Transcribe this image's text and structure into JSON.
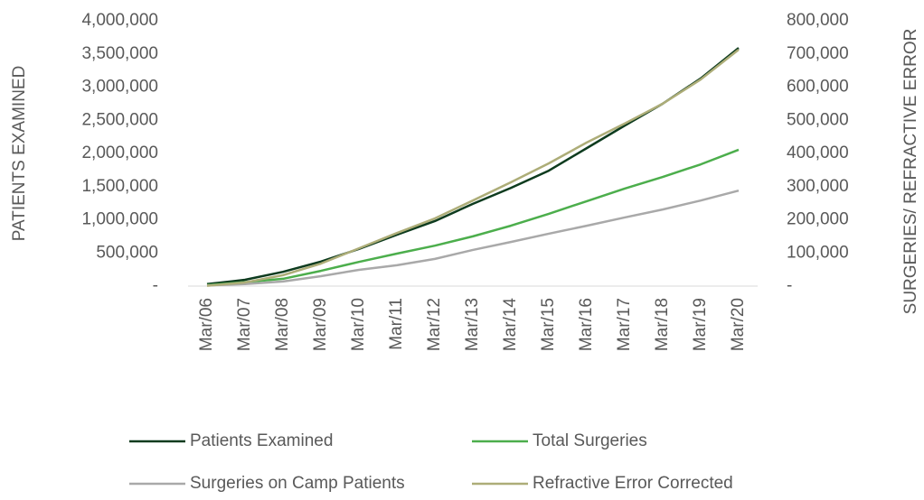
{
  "chart_data": {
    "type": "line",
    "y_label": "PATIENTS EXAMINED",
    "y2_label": "SURGERIES/ REFRACTIVE ERROR",
    "categories": [
      "Mar/06",
      "Mar/07",
      "Mar/08",
      "Mar/09",
      "Mar/10",
      "Mar/11",
      "Mar/12",
      "Mar/13",
      "Mar/14",
      "Mar/15",
      "Mar/16",
      "Mar/17",
      "Mar/18",
      "Mar/19",
      "Mar/20"
    ],
    "ylim": [
      0,
      4000000
    ],
    "yticks": [
      {
        "value": 0,
        "label": "-"
      },
      {
        "value": 500000,
        "label": "500,000"
      },
      {
        "value": 1000000,
        "label": "1,000,000"
      },
      {
        "value": 1500000,
        "label": "1,500,000"
      },
      {
        "value": 2000000,
        "label": "2,000,000"
      },
      {
        "value": 2500000,
        "label": "2,500,000"
      },
      {
        "value": 3000000,
        "label": "3,000,000"
      },
      {
        "value": 3500000,
        "label": "3,500,000"
      },
      {
        "value": 4000000,
        "label": "4,000,000"
      }
    ],
    "y2lim": [
      0,
      800000
    ],
    "y2ticks": [
      {
        "value": 0,
        "label": "-"
      },
      {
        "value": 100000,
        "label": "100,000"
      },
      {
        "value": 200000,
        "label": "200,000"
      },
      {
        "value": 300000,
        "label": "300,000"
      },
      {
        "value": 400000,
        "label": "400,000"
      },
      {
        "value": 500000,
        "label": "500,000"
      },
      {
        "value": 600000,
        "label": "600,000"
      },
      {
        "value": 700000,
        "label": "700,000"
      },
      {
        "value": 800000,
        "label": "800,000"
      }
    ],
    "grid": false,
    "legend": "bottom",
    "series": [
      {
        "name": "Patients Examined",
        "color": "#0d3b1e",
        "values": [
          30000,
          95000,
          215000,
          370000,
          560000,
          775000,
          980000,
          1240000,
          1480000,
          1740000,
          2080000,
          2420000,
          2750000,
          3130000,
          3590000
        ]
      },
      {
        "name": "Total Surgeries",
        "color": "#4cae4c",
        "axis": "y2",
        "values": [
          3000,
          12000,
          22000,
          46000,
          73000,
          98000,
          122000,
          150000,
          182000,
          218000,
          256000,
          294000,
          329000,
          367000,
          411000
        ]
      },
      {
        "name": "Surgeries on Camp Patients",
        "color": "#a9a9a9",
        "axis": "y2",
        "values": [
          2000,
          6000,
          14000,
          30000,
          49000,
          63000,
          82000,
          109000,
          133000,
          158000,
          182000,
          207000,
          231000,
          258000,
          288000
        ]
      },
      {
        "name": "Refractive Error Corrected",
        "color": "#adad78",
        "axis": "y2",
        "values": [
          1000,
          11000,
          33000,
          68000,
          114000,
          160000,
          204000,
          258000,
          313000,
          370000,
          433000,
          490000,
          550000,
          623000,
          713000
        ]
      }
    ]
  }
}
